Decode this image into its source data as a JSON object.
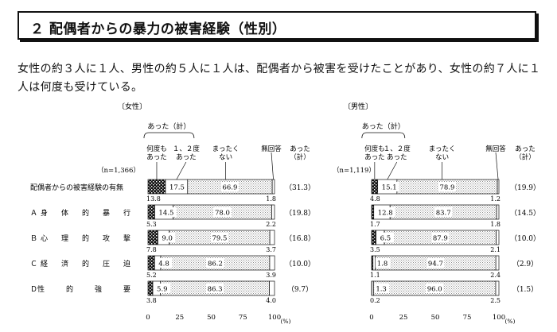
{
  "page": {
    "title": "２ 配偶者からの暴力の被害経験（性別）",
    "summary": "女性の約３人に１人、男性の約５人に１人は、配偶者から被害を受けたことがあり、女性の約７人に１人は何度も受けている。"
  },
  "colors": {
    "dark": "#111111",
    "stipple": "#9a9a9a",
    "frame": "#111111"
  },
  "chart_data": [
    {
      "type": "bar",
      "stacked": true,
      "group_label": "〔女性〕",
      "n_label": "（n=1,366）",
      "header_bracket_label": "あった（計）",
      "series": [
        {
          "name": "何度も\nあった"
        },
        {
          "name": "１、２度\nあった"
        },
        {
          "name": "まったく\nない"
        },
        {
          "name": "無回答"
        }
      ],
      "total_label": "あった\n（計）",
      "categories": [
        "配偶者からの被害経験の有無",
        "Ａ身　体　的　暴　行",
        "Ｂ心　理　的　攻　撃",
        "Ｃ経　済　的　圧　迫",
        "Ｄ性　　　的　　　強　　　要"
      ],
      "values": [
        [
          13.8,
          17.5,
          66.9,
          1.8
        ],
        [
          5.3,
          14.5,
          78.0,
          2.2
        ],
        [
          7.8,
          9.0,
          79.5,
          3.7
        ],
        [
          5.2,
          4.8,
          86.2,
          3.9
        ],
        [
          3.8,
          5.9,
          86.3,
          4.0
        ]
      ],
      "totals": [
        "（31.3）",
        "（19.8）",
        "（16.8）",
        "（10.0）",
        "（9.7）"
      ],
      "xticks": [
        "0",
        "25",
        "50",
        "75",
        "100"
      ],
      "xunit": "(%)",
      "xlim": [
        0,
        100
      ]
    },
    {
      "type": "bar",
      "stacked": true,
      "group_label": "〔男性〕",
      "n_label": "（n=1,119）",
      "header_bracket_label": "あった（計）",
      "series": [
        {
          "name": "何度も\nあった"
        },
        {
          "name": "１、２度\nあった"
        },
        {
          "name": "まったく\nない"
        },
        {
          "name": "無回答"
        }
      ],
      "total_label": "あった\n（計）",
      "values": [
        [
          4.8,
          15.1,
          78.9,
          1.2
        ],
        [
          1.7,
          12.8,
          83.7,
          1.8
        ],
        [
          3.5,
          6.5,
          87.9,
          2.1
        ],
        [
          1.1,
          1.8,
          94.7,
          2.4
        ],
        [
          0.2,
          1.3,
          96.0,
          2.5
        ]
      ],
      "totals": [
        "（19.9）",
        "（14.5）",
        "（10.0）",
        "（2.9）",
        "（1.5）"
      ],
      "xticks": [
        "0",
        "25",
        "50",
        "75",
        "100"
      ],
      "xunit": "(%)",
      "xlim": [
        0,
        100
      ]
    }
  ]
}
